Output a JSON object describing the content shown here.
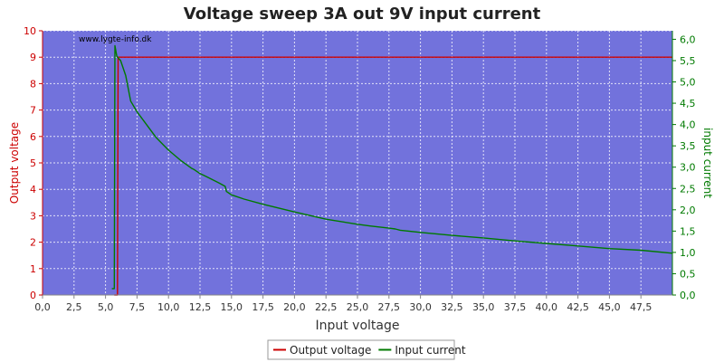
{
  "chart_data": {
    "type": "line",
    "title": "Voltage sweep 3A out 9V input current",
    "watermark": "www.lygte-info.dk",
    "xlabel": "Input voltage",
    "ylabel_left": "Output voltage",
    "ylabel_right": "input current",
    "xlim": [
      0,
      50
    ],
    "ylim_left": [
      0,
      10
    ],
    "ylim_right": [
      0,
      6.2
    ],
    "x_ticks": [
      "0,0",
      "2,5",
      "5,0",
      "7,5",
      "10,0",
      "12,5",
      "15,0",
      "17,5",
      "20,0",
      "22,5",
      "25,0",
      "27,5",
      "30,0",
      "32,5",
      "35,0",
      "37,5",
      "40,0",
      "42,5",
      "45,0",
      "47,5"
    ],
    "y_left_ticks": [
      "0",
      "1",
      "2",
      "3",
      "4",
      "5",
      "6",
      "7",
      "8",
      "9",
      "10"
    ],
    "y_right_ticks": [
      "0,0",
      "0,5",
      "1,0",
      "1,5",
      "2,0",
      "2,5",
      "3,0",
      "3,5",
      "4,0",
      "4,5",
      "5,0",
      "5,5",
      "6,0"
    ],
    "grid": true,
    "legend_position": "bottom-center",
    "colors": {
      "plot_bg": "#7272dc",
      "output_voltage": "#cc0000",
      "input_current": "#007a00",
      "left_axis": "#cc0000",
      "right_axis": "#007a00"
    },
    "series": [
      {
        "name": "Output voltage",
        "axis": "left",
        "x": [
          5.7,
          5.95,
          6.0,
          10,
          20,
          30,
          40,
          50
        ],
        "y": [
          0.0,
          0.0,
          9.0,
          9.0,
          9.0,
          9.0,
          9.0,
          9.0
        ]
      },
      {
        "name": "Input current",
        "axis": "right",
        "x": [
          5.5,
          5.7,
          5.75,
          5.9,
          6.2,
          6.6,
          7.0,
          7.5,
          8.0,
          9.0,
          10.0,
          11.0,
          11.8,
          12.0,
          12.5,
          13.0,
          14.0,
          14.5,
          14.6,
          15.0,
          16.0,
          17.5,
          20.0,
          22.5,
          25.0,
          26.0,
          27.5,
          28.0,
          28.4,
          30.0,
          32.5,
          35.0,
          37.5,
          40.0,
          42.5,
          45.0,
          47.5,
          50.0
        ],
        "y": [
          0.15,
          0.15,
          5.85,
          5.6,
          5.5,
          5.15,
          4.55,
          4.3,
          4.1,
          3.7,
          3.4,
          3.15,
          2.98,
          2.95,
          2.85,
          2.78,
          2.63,
          2.55,
          2.43,
          2.35,
          2.25,
          2.13,
          1.95,
          1.78,
          1.66,
          1.62,
          1.57,
          1.55,
          1.52,
          1.47,
          1.4,
          1.34,
          1.27,
          1.21,
          1.15,
          1.09,
          1.05,
          0.98
        ]
      }
    ]
  }
}
